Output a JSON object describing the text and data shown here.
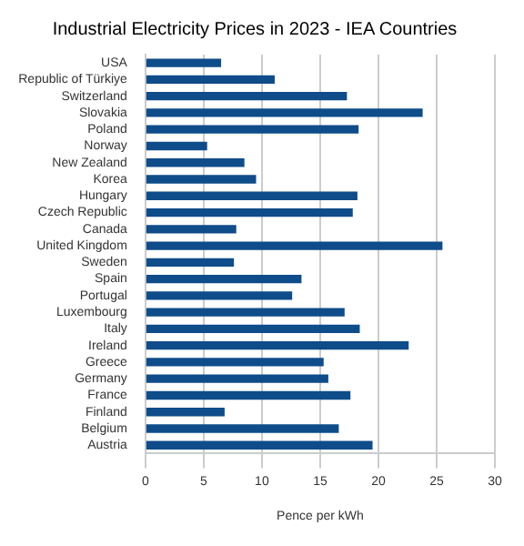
{
  "chart_data": {
    "type": "bar",
    "orientation": "horizontal",
    "title": "Industrial Electricity Prices in 2023 - IEA Countries",
    "xlabel": "Pence per kWh",
    "categories": [
      "USA",
      "Republic of Türkiye",
      "Switzerland",
      "Slovakia",
      "Poland",
      "Norway",
      "New Zealand",
      "Korea",
      "Hungary",
      "Czech Republic",
      "Canada",
      "United Kingdom",
      "Sweden",
      "Spain",
      "Portugal",
      "Luxembourg",
      "Italy",
      "Ireland",
      "Greece",
      "Germany",
      "France",
      "Finland",
      "Belgium",
      "Austria"
    ],
    "values": [
      6.5,
      11.1,
      17.3,
      23.8,
      18.3,
      5.3,
      8.5,
      9.5,
      18.2,
      17.8,
      7.8,
      25.5,
      7.6,
      13.4,
      12.6,
      17.1,
      18.4,
      22.6,
      15.3,
      15.7,
      17.6,
      6.8,
      16.6,
      19.5
    ],
    "color": "#0f4c8a",
    "xlim": [
      0,
      30
    ],
    "xticks": [
      0,
      5,
      10,
      15,
      20,
      25,
      30
    ],
    "grid": "x"
  }
}
